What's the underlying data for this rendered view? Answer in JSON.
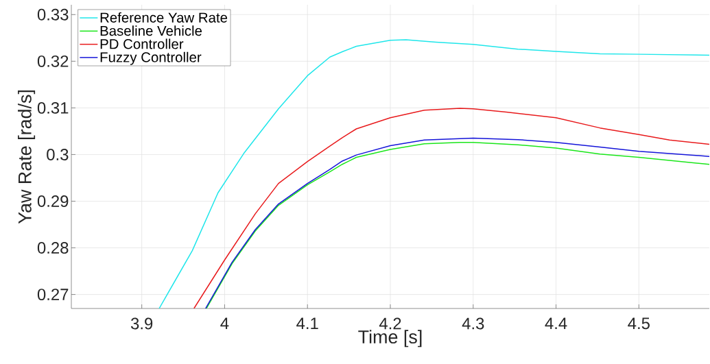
{
  "chart_data": {
    "type": "line",
    "xlabel": "Time [s]",
    "ylabel": "Yaw Rate [rad/s]",
    "xlim": [
      3.815,
      4.585
    ],
    "ylim": [
      0.267,
      0.3321
    ],
    "xticks": [
      3.9,
      4,
      4.1,
      4.2,
      4.3,
      4.4,
      4.5
    ],
    "yticks": [
      0.27,
      0.28,
      0.29,
      0.3,
      0.31,
      0.32,
      0.33
    ],
    "grid": true,
    "legend": "top left",
    "series": [
      {
        "name": "Reference Yaw Rate",
        "color": "#1ee6ea",
        "x": [
          3.921,
          3.961,
          3.992,
          4.023,
          4.065,
          4.1,
          4.127,
          4.143,
          4.159,
          4.2,
          4.219,
          4.255,
          4.3,
          4.354,
          4.4,
          4.453,
          4.5,
          4.585
        ],
        "values": [
          0.267,
          0.2794,
          0.2918,
          0.3002,
          0.3098,
          0.3169,
          0.3209,
          0.3221,
          0.3232,
          0.3245,
          0.3246,
          0.3241,
          0.3236,
          0.3226,
          0.3221,
          0.3216,
          0.3215,
          0.3213
        ]
      },
      {
        "name": "Baseline Vehicle",
        "color": "#19e619",
        "x": [
          3.978,
          4.009,
          4.037,
          4.065,
          4.1,
          4.127,
          4.142,
          4.159,
          4.2,
          4.241,
          4.284,
          4.3,
          4.354,
          4.4,
          4.453,
          4.5,
          4.585
        ],
        "values": [
          0.267,
          0.2766,
          0.2836,
          0.2891,
          0.2935,
          0.2963,
          0.2979,
          0.2994,
          0.3011,
          0.3023,
          0.3026,
          0.3026,
          0.3021,
          0.3014,
          0.3001,
          0.2994,
          0.2979
        ]
      },
      {
        "name": "PD Controller",
        "color": "#e8191b",
        "x": [
          3.963,
          4.0,
          4.037,
          4.065,
          4.1,
          4.127,
          4.142,
          4.159,
          4.2,
          4.241,
          4.284,
          4.3,
          4.34,
          4.4,
          4.453,
          4.5,
          4.537,
          4.585
        ],
        "values": [
          0.267,
          0.2774,
          0.2873,
          0.2938,
          0.2985,
          0.3018,
          0.3036,
          0.3055,
          0.3079,
          0.3095,
          0.3099,
          0.3098,
          0.3091,
          0.3079,
          0.3057,
          0.3043,
          0.3031,
          0.3022
        ]
      },
      {
        "name": "Fuzzy Controller",
        "color": "#1414d9",
        "x": [
          3.977,
          4.009,
          4.037,
          4.065,
          4.1,
          4.127,
          4.142,
          4.159,
          4.2,
          4.241,
          4.3,
          4.354,
          4.4,
          4.453,
          4.5,
          4.585
        ],
        "values": [
          0.267,
          0.2769,
          0.2839,
          0.2894,
          0.2938,
          0.2968,
          0.2986,
          0.2999,
          0.3019,
          0.3031,
          0.3035,
          0.3032,
          0.3026,
          0.3016,
          0.3007,
          0.2996
        ]
      }
    ]
  }
}
